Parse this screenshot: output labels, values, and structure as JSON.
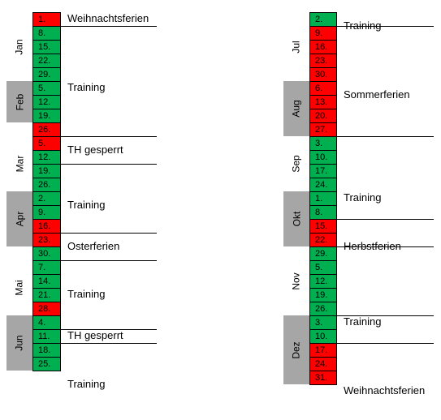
{
  "left": {
    "months": [
      {
        "name": "Jan",
        "shaded": false
      },
      {
        "name": "Feb",
        "shaded": true
      },
      {
        "name": "Mar",
        "shaded": false
      },
      {
        "name": "Apr",
        "shaded": true
      },
      {
        "name": "Mai",
        "shaded": false
      },
      {
        "name": "Jun",
        "shaded": true
      }
    ],
    "dates": [
      {
        "day": "1.",
        "status": "red"
      },
      {
        "day": "8.",
        "status": "green"
      },
      {
        "day": "15.",
        "status": "green"
      },
      {
        "day": "22.",
        "status": "green"
      },
      {
        "day": "29.",
        "status": "green"
      },
      {
        "day": "5.",
        "status": "green"
      },
      {
        "day": "12.",
        "status": "green"
      },
      {
        "day": "19.",
        "status": "green"
      },
      {
        "day": "26.",
        "status": "red"
      },
      {
        "day": "5.",
        "status": "red"
      },
      {
        "day": "12.",
        "status": "green"
      },
      {
        "day": "19.",
        "status": "green"
      },
      {
        "day": "26.",
        "status": "green"
      },
      {
        "day": "2.",
        "status": "green"
      },
      {
        "day": "9.",
        "status": "green"
      },
      {
        "day": "16.",
        "status": "red"
      },
      {
        "day": "23.",
        "status": "red"
      },
      {
        "day": "30.",
        "status": "green"
      },
      {
        "day": "7.",
        "status": "green"
      },
      {
        "day": "14.",
        "status": "green"
      },
      {
        "day": "21.",
        "status": "green"
      },
      {
        "day": "28.",
        "status": "red"
      },
      {
        "day": "4.",
        "status": "green"
      },
      {
        "day": "11.",
        "status": "green"
      },
      {
        "day": "18.",
        "status": "green"
      },
      {
        "day": "25.",
        "status": "green"
      }
    ],
    "labels": [
      "Weihnachtsferien",
      "Training",
      "TH gesperrt",
      "Training",
      "Osterferien",
      "Training",
      "TH gesperrt",
      "Training"
    ]
  },
  "right": {
    "months": [
      {
        "name": "Jul",
        "shaded": false
      },
      {
        "name": "Aug",
        "shaded": true
      },
      {
        "name": "Sep",
        "shaded": false
      },
      {
        "name": "Okt",
        "shaded": true
      },
      {
        "name": "Nov",
        "shaded": false
      },
      {
        "name": "Dez",
        "shaded": true
      }
    ],
    "dates": [
      {
        "day": "2.",
        "status": "green"
      },
      {
        "day": "9.",
        "status": "red"
      },
      {
        "day": "16.",
        "status": "red"
      },
      {
        "day": "23.",
        "status": "red"
      },
      {
        "day": "30.",
        "status": "red"
      },
      {
        "day": "6.",
        "status": "red"
      },
      {
        "day": "13.",
        "status": "red"
      },
      {
        "day": "20.",
        "status": "red"
      },
      {
        "day": "27.",
        "status": "red"
      },
      {
        "day": "3.",
        "status": "green"
      },
      {
        "day": "10.",
        "status": "green"
      },
      {
        "day": "17.",
        "status": "green"
      },
      {
        "day": "24.",
        "status": "green"
      },
      {
        "day": "1.",
        "status": "green"
      },
      {
        "day": "8.",
        "status": "green"
      },
      {
        "day": "15.",
        "status": "red"
      },
      {
        "day": "22.",
        "status": "red"
      },
      {
        "day": "29.",
        "status": "green"
      },
      {
        "day": "5.",
        "status": "green"
      },
      {
        "day": "12.",
        "status": "green"
      },
      {
        "day": "19.",
        "status": "green"
      },
      {
        "day": "26.",
        "status": "green"
      },
      {
        "day": "3.",
        "status": "green"
      },
      {
        "day": "10.",
        "status": "green"
      },
      {
        "day": "17.",
        "status": "red"
      },
      {
        "day": "24.",
        "status": "red"
      },
      {
        "day": "31.",
        "status": "red"
      }
    ],
    "labels": [
      "Training",
      "Sommerferien",
      "Training",
      "Herbstferien",
      "Training",
      "Weihnachtsferien"
    ]
  },
  "colors": {
    "training": "#00b050",
    "blocked": "#ff0000",
    "month_shade": "#a6a6a6"
  }
}
